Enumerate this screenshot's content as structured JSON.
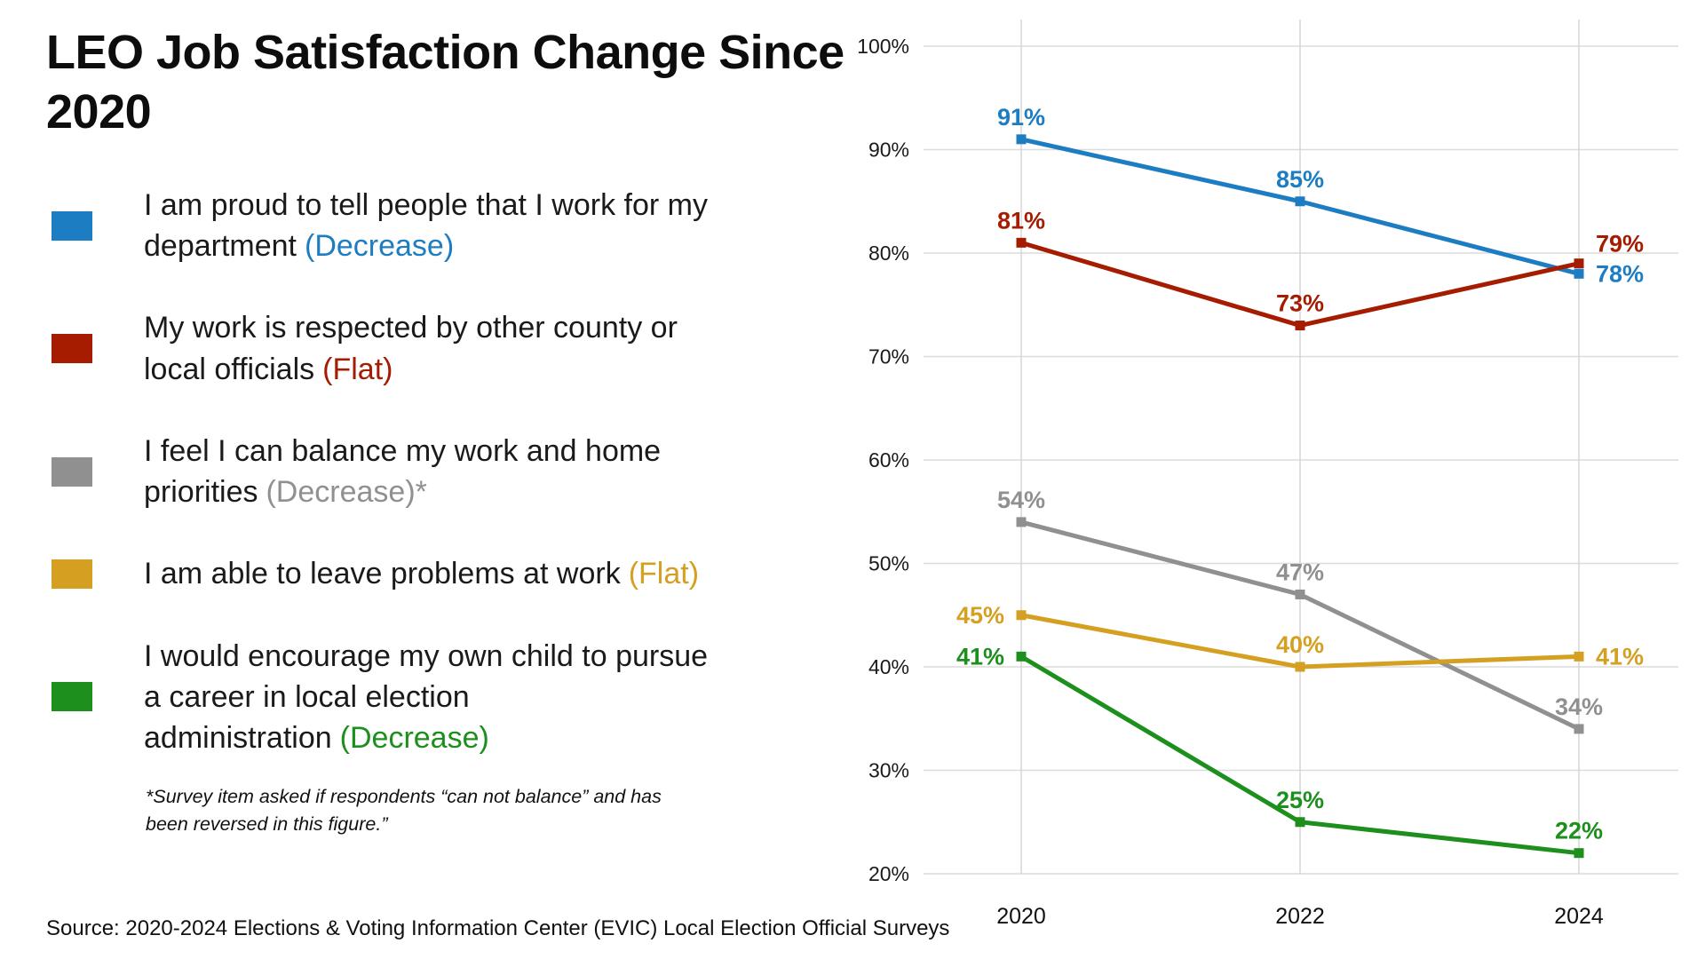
{
  "title": "LEO Job Satisfaction Change Since 2020",
  "footnote": "*Survey item asked if respondents “can not balance” and has been reversed in this figure.”",
  "source": "Source: 2020-2024 Elections & Voting Information Center (EVIC) Local Election Official Surveys",
  "chart_data": {
    "type": "line",
    "x_labels": [
      "2020",
      "2022",
      "2024"
    ],
    "ylim": [
      20,
      100
    ],
    "ytick_step": 10,
    "ytick_suffix": "%",
    "grid": true,
    "legend_position": "left",
    "series": [
      {
        "name": "I am proud to tell people that I work for my department",
        "trend": "(Decrease)",
        "color": "#1d7dc2",
        "values": [
          91,
          85,
          78
        ],
        "point_labels": [
          "91%",
          "85%",
          "78%"
        ],
        "label_pos": [
          "above",
          "above",
          "right"
        ]
      },
      {
        "name": "My work is respected by other county or local officials",
        "trend": "(Flat)",
        "color": "#a61c00",
        "values": [
          81,
          73,
          79
        ],
        "point_labels": [
          "81%",
          "73%",
          "79%"
        ],
        "label_pos": [
          "above",
          "above",
          "right-above"
        ]
      },
      {
        "name": "I feel I can balance my work and home priorities",
        "trend": "(Decrease)*",
        "color": "#909090",
        "values": [
          54,
          47,
          34
        ],
        "point_labels": [
          "54%",
          "47%",
          "34%"
        ],
        "label_pos": [
          "above",
          "above",
          "above"
        ]
      },
      {
        "name": "I am able to leave problems at work",
        "trend": "(Flat)",
        "color": "#d5a021",
        "values": [
          45,
          40,
          41
        ],
        "point_labels": [
          "45%",
          "40%",
          "41%"
        ],
        "label_pos": [
          "left",
          "above",
          "right"
        ]
      },
      {
        "name": "I would encourage my own child to pursue a career in local election administration",
        "trend": "(Decrease)",
        "color": "#1d8f1d",
        "values": [
          41,
          25,
          22
        ],
        "point_labels": [
          "41%",
          "25%",
          "22%"
        ],
        "label_pos": [
          "left",
          "above",
          "above"
        ]
      }
    ]
  }
}
